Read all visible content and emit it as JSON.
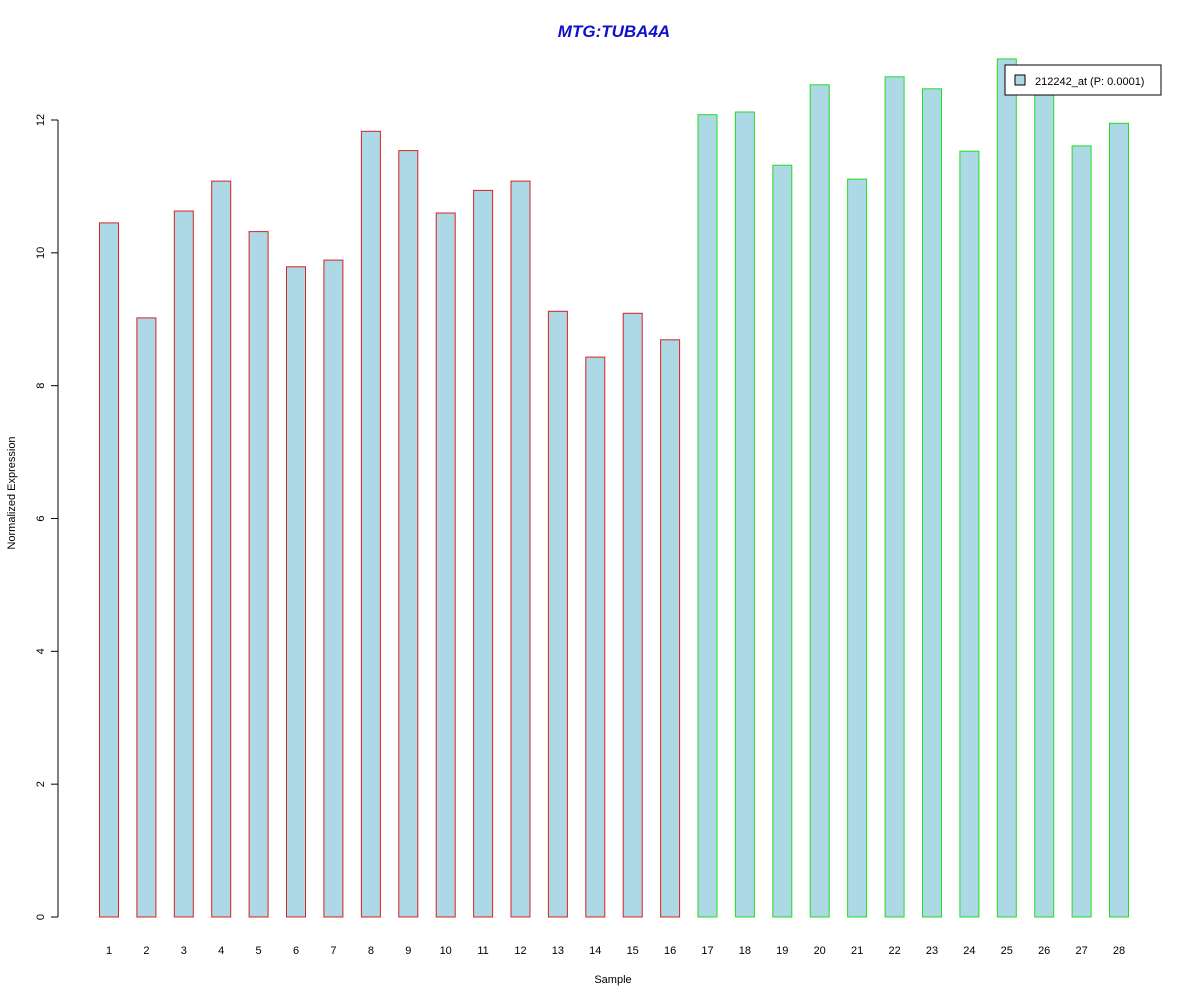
{
  "chart_data": {
    "type": "bar",
    "title": "MTG:TUBA4A",
    "xlabel": "Sample",
    "ylabel": "Normalized Expression",
    "categories": [
      "1",
      "2",
      "3",
      "4",
      "5",
      "6",
      "7",
      "8",
      "9",
      "10",
      "11",
      "12",
      "13",
      "14",
      "15",
      "16",
      "17",
      "18",
      "19",
      "20",
      "21",
      "22",
      "23",
      "24",
      "25",
      "26",
      "27",
      "28"
    ],
    "values": [
      10.45,
      9.02,
      10.63,
      11.08,
      10.32,
      9.79,
      9.89,
      11.83,
      11.54,
      10.6,
      10.94,
      11.08,
      9.12,
      8.43,
      9.09,
      8.69,
      12.08,
      12.12,
      11.32,
      12.53,
      11.11,
      12.65,
      12.47,
      11.53,
      12.92,
      12.49,
      11.61,
      11.95
    ],
    "group_colors": [
      "#dd2020",
      "#dd2020",
      "#dd2020",
      "#dd2020",
      "#dd2020",
      "#dd2020",
      "#dd2020",
      "#dd2020",
      "#dd2020",
      "#dd2020",
      "#dd2020",
      "#dd2020",
      "#dd2020",
      "#dd2020",
      "#dd2020",
      "#dd2020",
      "#22dd22",
      "#22dd22",
      "#22dd22",
      "#22dd22",
      "#22dd22",
      "#22dd22",
      "#22dd22",
      "#22dd22",
      "#22dd22",
      "#22dd22",
      "#22dd22",
      "#22dd22"
    ],
    "ylim": [
      0,
      13
    ],
    "yticks": [
      0,
      2,
      4,
      6,
      8,
      10,
      12
    ],
    "grid": false,
    "legend": {
      "label": "212242_at (P: 0.0001)",
      "placement": "top-right"
    },
    "colors": {
      "bar_fill": "#add8e6",
      "title": "#1010cc",
      "axis": "#000000"
    }
  }
}
